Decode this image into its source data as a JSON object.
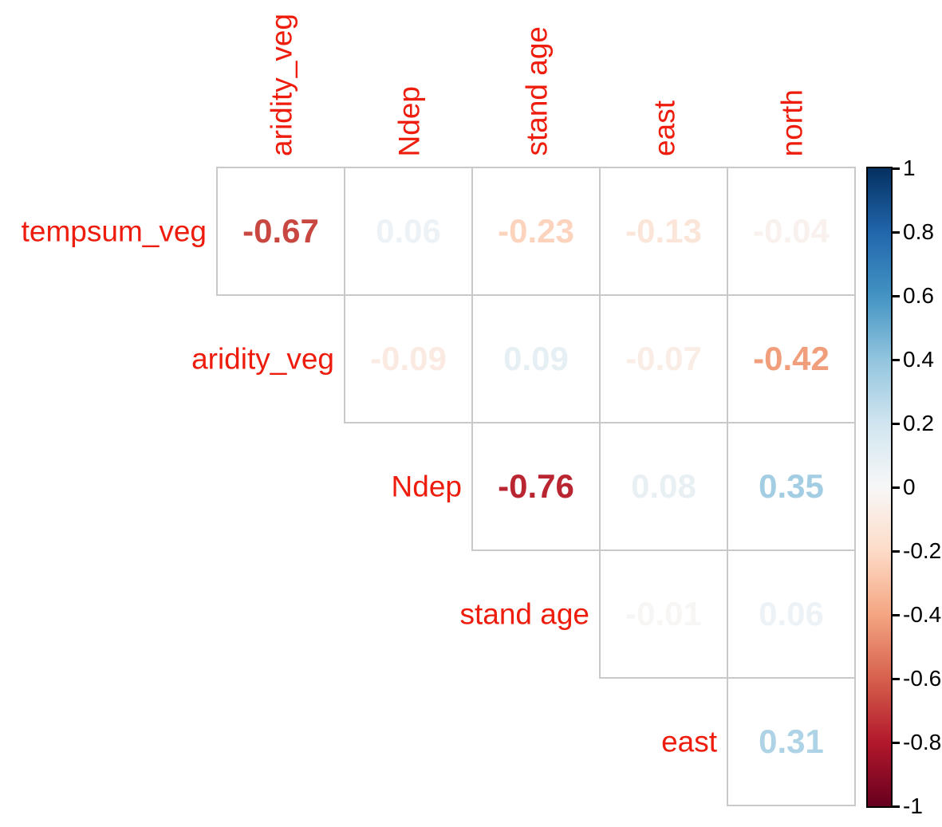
{
  "chart_data": {
    "type": "heatmap",
    "subtype": "upper-triangle correlation matrix with numeric coefficients (corrplot style)",
    "title": "",
    "variables": [
      "tempsum_veg",
      "aridity_veg",
      "Ndep",
      "stand age",
      "east",
      "north"
    ],
    "row_labels": [
      "tempsum_veg",
      "aridity_veg",
      "Ndep",
      "stand age",
      "east"
    ],
    "col_labels": [
      "aridity_veg",
      "Ndep",
      "stand age",
      "east",
      "north"
    ],
    "cells": [
      {
        "row": "tempsum_veg",
        "col": "aridity_veg",
        "value": -0.67,
        "display": "-0.67"
      },
      {
        "row": "tempsum_veg",
        "col": "Ndep",
        "value": 0.06,
        "display": "0.06"
      },
      {
        "row": "tempsum_veg",
        "col": "stand age",
        "value": -0.23,
        "display": "-0.23"
      },
      {
        "row": "tempsum_veg",
        "col": "east",
        "value": -0.13,
        "display": "-0.13"
      },
      {
        "row": "tempsum_veg",
        "col": "north",
        "value": -0.04,
        "display": "-0.04"
      },
      {
        "row": "aridity_veg",
        "col": "Ndep",
        "value": -0.09,
        "display": "-0.09"
      },
      {
        "row": "aridity_veg",
        "col": "stand age",
        "value": 0.09,
        "display": "0.09"
      },
      {
        "row": "aridity_veg",
        "col": "east",
        "value": -0.07,
        "display": "-0.07"
      },
      {
        "row": "aridity_veg",
        "col": "north",
        "value": -0.42,
        "display": "-0.42"
      },
      {
        "row": "Ndep",
        "col": "stand age",
        "value": -0.76,
        "display": "-0.76"
      },
      {
        "row": "Ndep",
        "col": "east",
        "value": 0.08,
        "display": "0.08"
      },
      {
        "row": "Ndep",
        "col": "north",
        "value": 0.35,
        "display": "0.35"
      },
      {
        "row": "stand age",
        "col": "east",
        "value": -0.01,
        "display": "-0.01"
      },
      {
        "row": "stand age",
        "col": "north",
        "value": 0.06,
        "display": "0.06"
      },
      {
        "row": "east",
        "col": "north",
        "value": 0.31,
        "display": "0.31"
      }
    ],
    "colorbar": {
      "min": -1,
      "max": 1,
      "tick_labels": [
        "1",
        "0.8",
        "0.6",
        "0.4",
        "0.2",
        "0",
        "-0.2",
        "-0.4",
        "-0.6",
        "-0.8",
        "-1"
      ],
      "palette_name": "RdBu",
      "palette_stops_top_to_bottom": [
        "#053061",
        "#2166AC",
        "#4393C3",
        "#92C5DE",
        "#D1E5F0",
        "#F7F7F7",
        "#FDDBC7",
        "#F4A582",
        "#D6604D",
        "#B2182B",
        "#67001F"
      ],
      "position": "right"
    },
    "colors": {
      "axis_label_color": "#ee1c0c",
      "grid_line_color": "#c9c9c9",
      "tick_text_color": "#000000",
      "background": "#ffffff"
    },
    "grid": true
  }
}
